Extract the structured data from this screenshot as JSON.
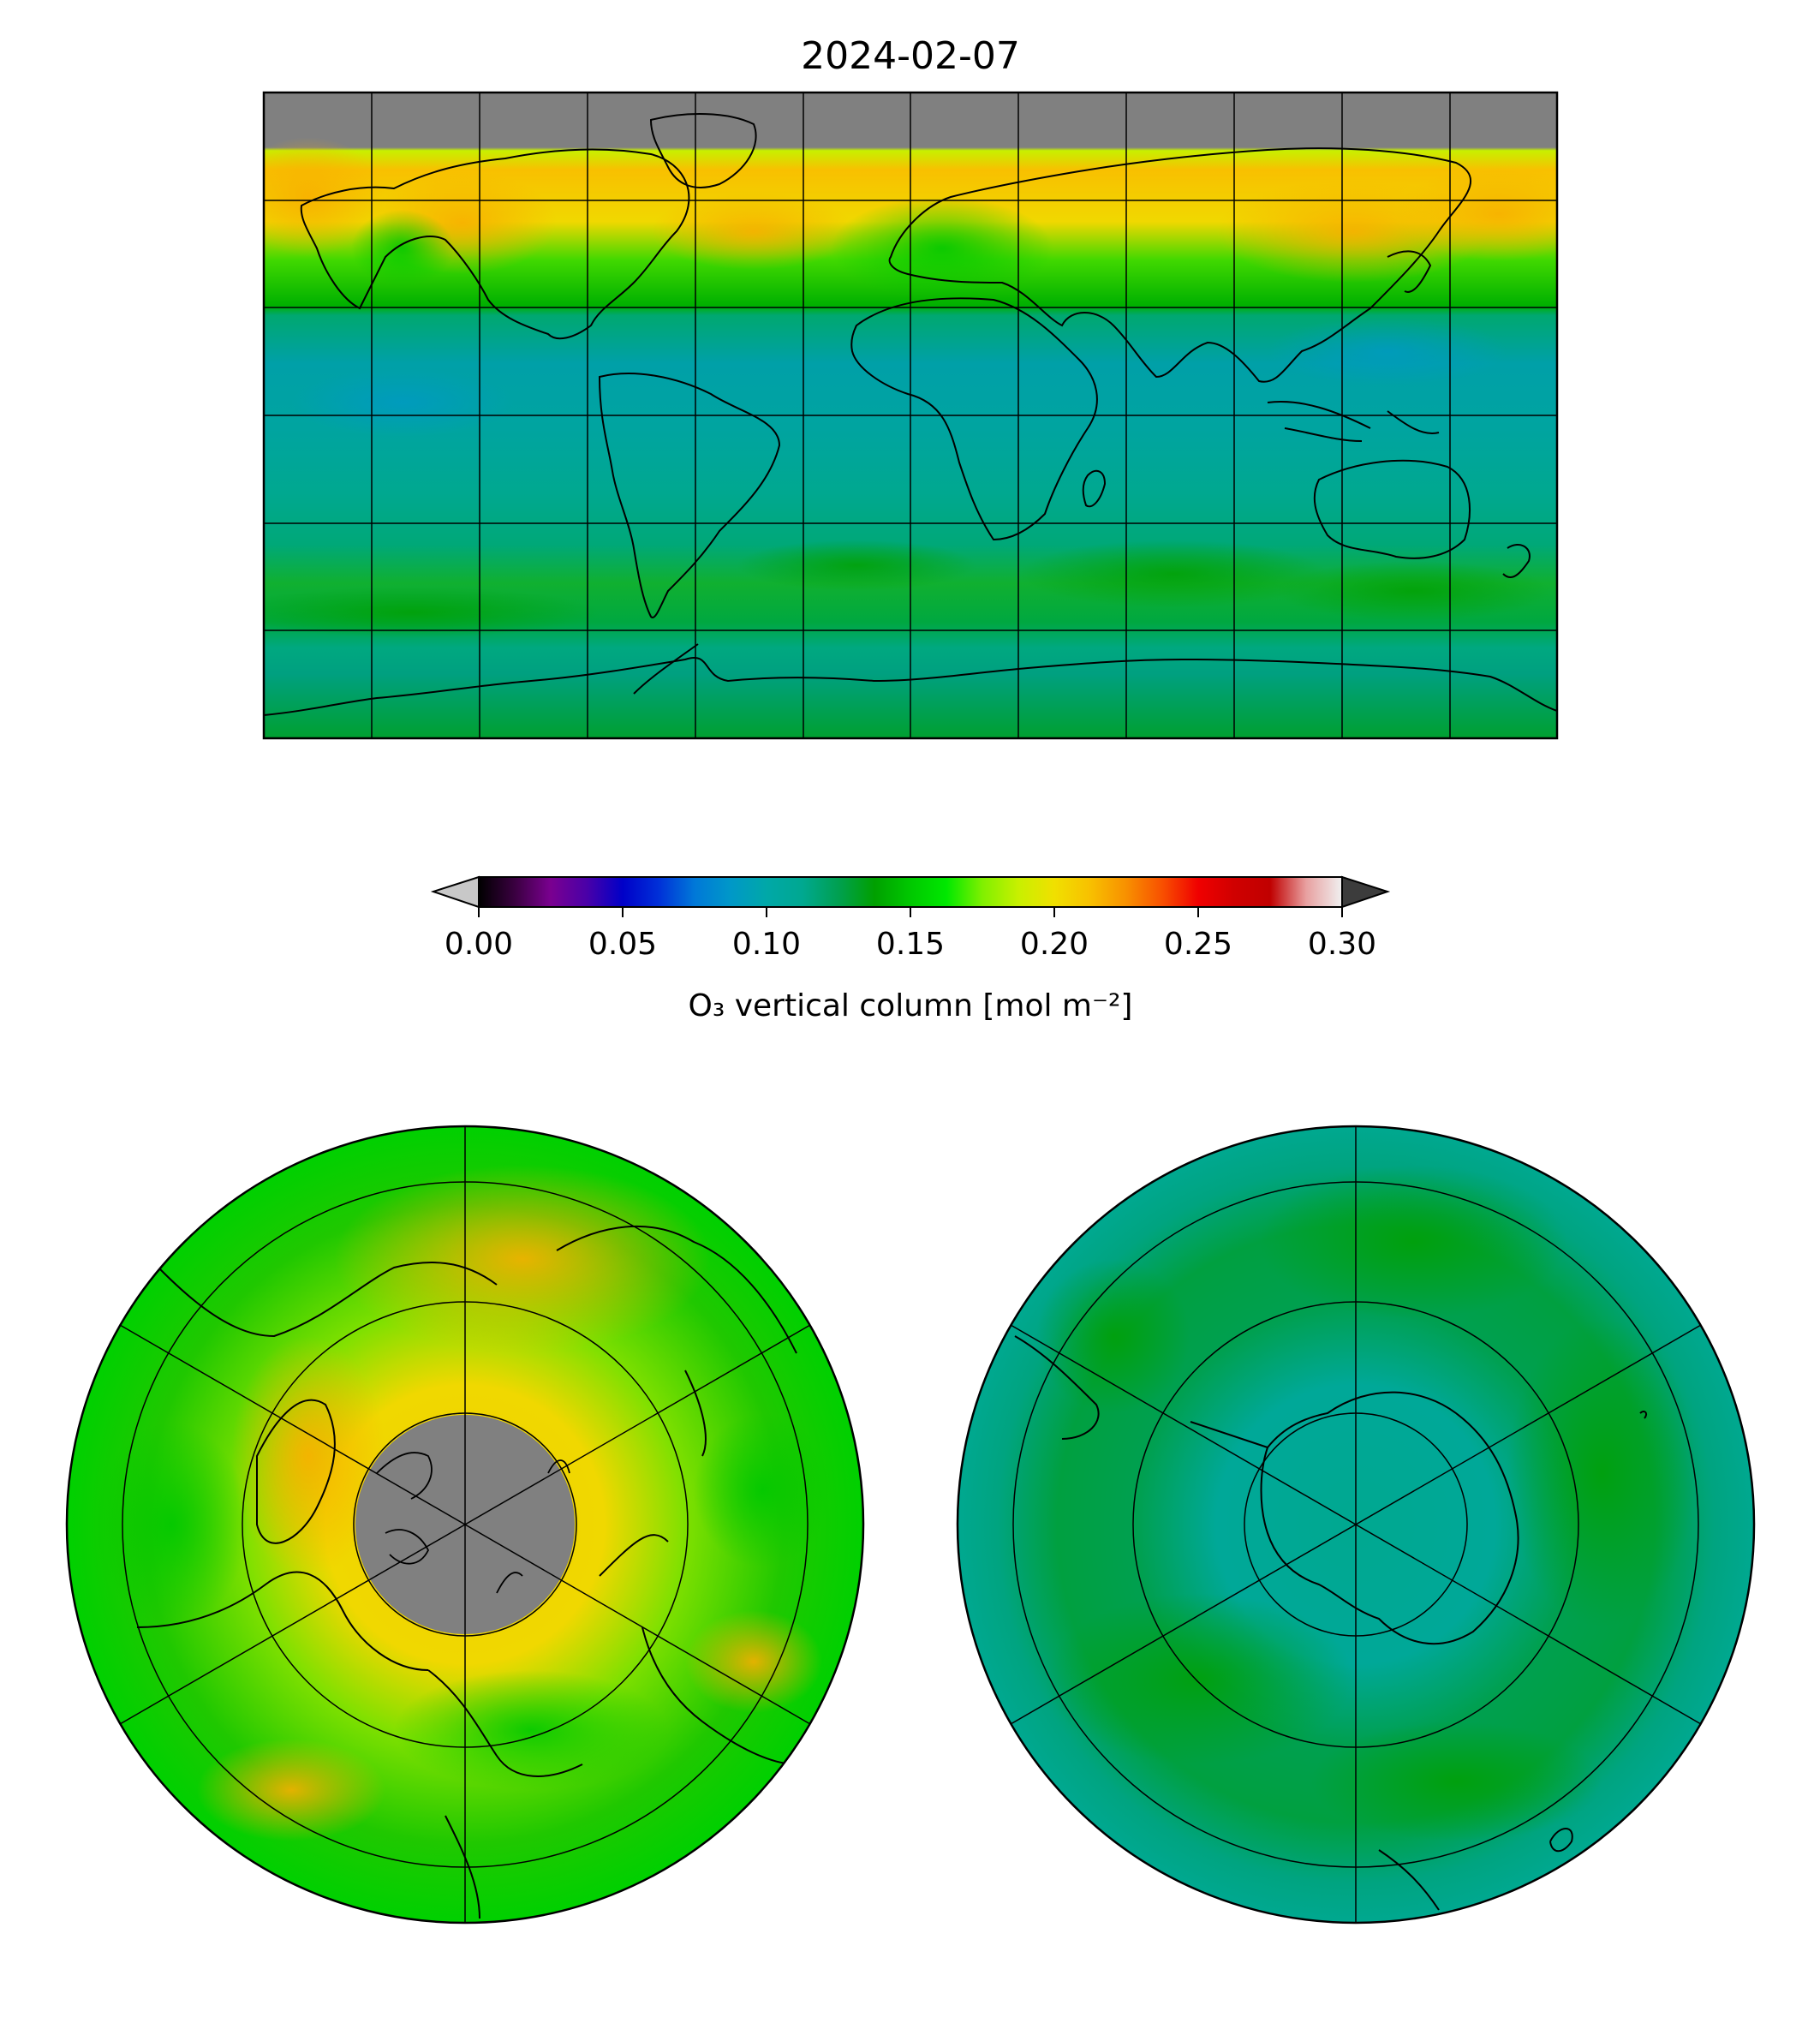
{
  "title": "2024-02-07",
  "colorbar": {
    "label": "O₃ vertical column [mol m⁻²]",
    "vmin": 0.0,
    "vmax": 0.3,
    "ticks": [
      "0.00",
      "0.05",
      "0.10",
      "0.15",
      "0.20",
      "0.25",
      "0.30"
    ],
    "extend": "both",
    "under_color": "#c8c8c8",
    "over_color": "#3c3c3c",
    "colors": [
      "#000000",
      "#3a0040",
      "#7a0090",
      "#4a00a8",
      "#0000c8",
      "#0030d8",
      "#0078d8",
      "#0098c8",
      "#00a8a8",
      "#00a890",
      "#00a050",
      "#00a000",
      "#00c800",
      "#00e800",
      "#80f000",
      "#c8f000",
      "#f0e000",
      "#f8c000",
      "#f89000",
      "#f85000",
      "#f00000",
      "#d00000",
      "#c00000",
      "#e8a0a0",
      "#f0f0f0"
    ]
  },
  "maps": {
    "global": {
      "projection": "equirectangular",
      "missing_data_color": "#808080",
      "missing_region": "north of ~75N",
      "field_summary": "high (~0.21-0.24) over N. Pacific, Siberia, N. America at 40-75N; tropics ~0.11-0.12; southern mid-latitudes ~0.13-0.15; Antarctica ~0.12-0.14"
    },
    "north_polar": {
      "projection": "north polar stereographic",
      "missing_data_color": "#808080",
      "missing_region": "cap north of ~75N",
      "field_summary": "ozone maxima ~0.22-0.24 over Siberia / Canada; green ~0.16-0.19 elsewhere"
    },
    "south_polar": {
      "projection": "south polar stereographic",
      "field_summary": "mostly ~0.12-0.14 teal, ring of ~0.14-0.15 green near 50-60S"
    }
  }
}
